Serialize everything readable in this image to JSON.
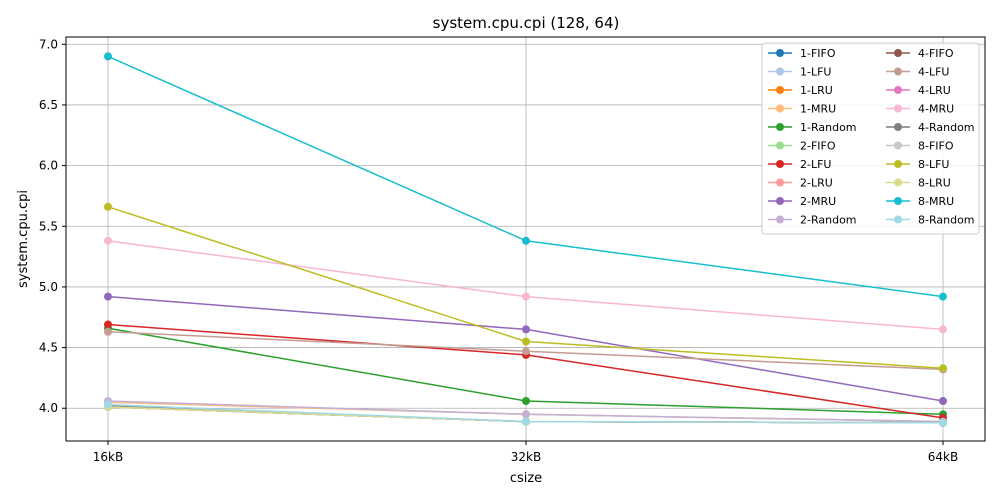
{
  "chart_data": {
    "type": "line",
    "title": "system.cpu.cpi (128, 64)",
    "xlabel": "csize",
    "ylabel": "system.cpu.cpi",
    "categories": [
      "16kB",
      "32kB",
      "64kB"
    ],
    "ylim": [
      3.73,
      7.06
    ],
    "yticks": [
      4.0,
      4.5,
      5.0,
      5.5,
      6.0,
      6.5,
      7.0
    ],
    "ytick_labels": [
      "4.0",
      "4.5",
      "5.0",
      "5.5",
      "6.0",
      "6.5",
      "7.0"
    ],
    "grid": true,
    "legend_position": "top-right",
    "legend_columns": 2,
    "series": [
      {
        "name": "1-FIFO",
        "color": "#1f77b4",
        "values": [
          4.01,
          3.89,
          3.88
        ]
      },
      {
        "name": "1-LFU",
        "color": "#aec7e8",
        "values": [
          4.05,
          3.95,
          3.89
        ]
      },
      {
        "name": "1-LRU",
        "color": "#ff7f0e",
        "values": [
          4.01,
          3.89,
          3.88
        ]
      },
      {
        "name": "1-MRU",
        "color": "#ffbb78",
        "values": [
          4.05,
          3.95,
          3.89
        ]
      },
      {
        "name": "1-Random",
        "color": "#2ca02c",
        "values": [
          4.66,
          4.06,
          3.95
        ]
      },
      {
        "name": "2-FIFO",
        "color": "#98df8a",
        "values": [
          4.01,
          3.89,
          3.88
        ]
      },
      {
        "name": "2-LFU",
        "color": "#d62728",
        "values": [
          4.69,
          4.44,
          3.92
        ]
      },
      {
        "name": "2-LRU",
        "color": "#ff9896",
        "values": [
          4.01,
          3.89,
          3.88
        ]
      },
      {
        "name": "2-MRU",
        "color": "#9467bd",
        "values": [
          4.92,
          4.65,
          4.06
        ]
      },
      {
        "name": "2-Random",
        "color": "#c5b0d5",
        "values": [
          4.06,
          3.95,
          3.89
        ]
      },
      {
        "name": "4-FIFO",
        "color": "#8c564b",
        "values": [
          4.01,
          3.89,
          3.88
        ]
      },
      {
        "name": "4-LFU",
        "color": "#c49c94",
        "values": [
          4.63,
          4.47,
          4.32
        ]
      },
      {
        "name": "4-LRU",
        "color": "#e377c2",
        "values": [
          4.01,
          3.89,
          3.88
        ]
      },
      {
        "name": "4-MRU",
        "color": "#f7b6d2",
        "values": [
          5.38,
          4.92,
          4.65
        ]
      },
      {
        "name": "4-Random",
        "color": "#7f7f7f",
        "values": [
          4.02,
          3.89,
          3.88
        ]
      },
      {
        "name": "8-FIFO",
        "color": "#c7c7c7",
        "values": [
          4.01,
          3.89,
          3.88
        ]
      },
      {
        "name": "8-LFU",
        "color": "#bcbd22",
        "values": [
          5.66,
          4.55,
          4.33
        ]
      },
      {
        "name": "8-LRU",
        "color": "#dbdb8d",
        "values": [
          4.01,
          3.89,
          3.88
        ]
      },
      {
        "name": "8-MRU",
        "color": "#17becf",
        "values": [
          6.9,
          5.38,
          4.92
        ]
      },
      {
        "name": "8-Random",
        "color": "#9edae5",
        "values": [
          4.03,
          3.89,
          3.88
        ]
      }
    ]
  }
}
